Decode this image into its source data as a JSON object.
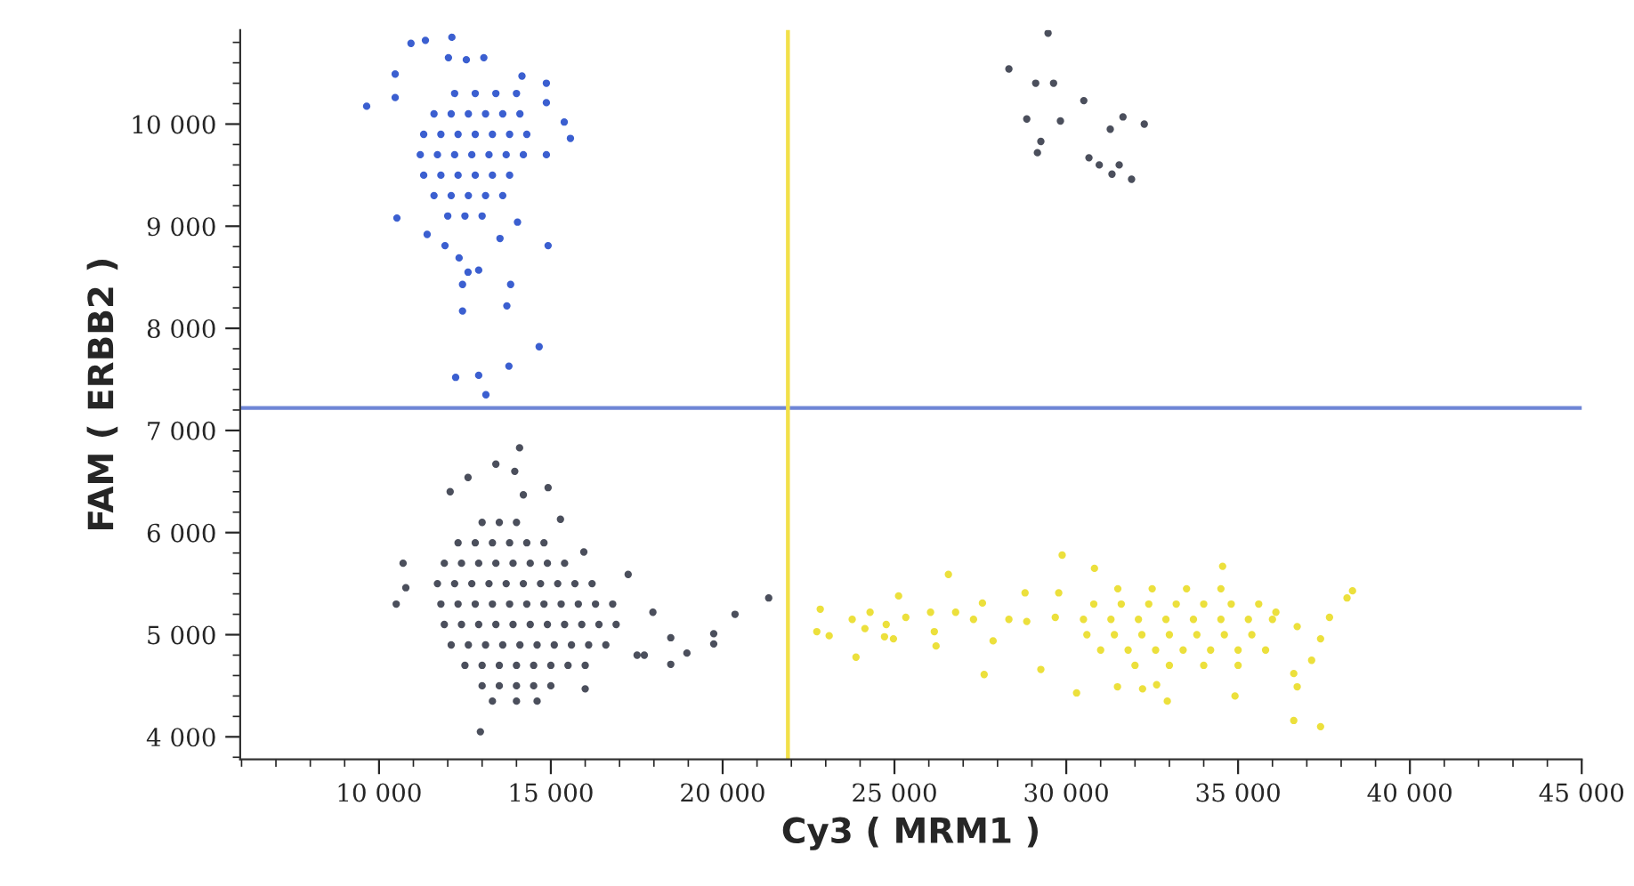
{
  "chart_data": {
    "type": "scatter",
    "xlabel": "Cy3 ( MRM1 )",
    "ylabel": "FAM ( ERBB2 )",
    "xlim": [
      5960,
      45000
    ],
    "ylim": [
      3780,
      10920
    ],
    "xticks": [
      {
        "value": 10000,
        "label": "10 000"
      },
      {
        "value": 15000,
        "label": "15 000"
      },
      {
        "value": 20000,
        "label": "20 000"
      },
      {
        "value": 25000,
        "label": "25 000"
      },
      {
        "value": 30000,
        "label": "30 000"
      },
      {
        "value": 35000,
        "label": "35 000"
      },
      {
        "value": 40000,
        "label": "40 000"
      },
      {
        "value": 45000,
        "label": "45 000"
      }
    ],
    "yticks": [
      {
        "value": 4000,
        "label": "4 000"
      },
      {
        "value": 5000,
        "label": "5 000"
      },
      {
        "value": 6000,
        "label": "6 000"
      },
      {
        "value": 7000,
        "label": "7 000"
      },
      {
        "value": 8000,
        "label": "8 000"
      },
      {
        "value": 9000,
        "label": "9 000"
      },
      {
        "value": 10000,
        "label": "10 000"
      }
    ],
    "marker": "circle",
    "ref_lines": [
      {
        "axis": "y",
        "value": 7220,
        "color": "#6f86d6"
      },
      {
        "axis": "x",
        "value": 21900,
        "color": "#f2e04a"
      }
    ],
    "series": [
      {
        "color": "#4b4f5c",
        "x": [
          13000,
          13500,
          14000,
          12300,
          12800,
          13300,
          13800,
          14300,
          14800,
          11900,
          12400,
          12900,
          13400,
          13900,
          14400,
          14900,
          15400,
          11700,
          12200,
          12700,
          13200,
          13700,
          14200,
          14700,
          15200,
          15700,
          16200,
          11800,
          12300,
          12800,
          13300,
          13800,
          14300,
          14800,
          15300,
          15800,
          16300,
          16800,
          11900,
          12400,
          12900,
          13400,
          13900,
          14400,
          14900,
          15400,
          15900,
          16400,
          16900,
          12100,
          12600,
          13100,
          13600,
          14100,
          14600,
          15100,
          15600,
          16100,
          16600,
          12500,
          13000,
          13500,
          14000,
          14500,
          15000,
          15500,
          16000,
          13000,
          13500,
          14000,
          14500,
          15000,
          13300,
          14000,
          14600,
          10500,
          10700,
          10780,
          12070,
          12590,
          13400,
          13950,
          14090,
          14200,
          14920,
          12950,
          16000,
          17970,
          18490,
          18490,
          18960,
          19740,
          19740,
          20360,
          21340,
          17720,
          17510,
          17250,
          15960,
          15280,
          29470,
          28330,
          29110,
          29630,
          30510,
          28850,
          29830,
          31280,
          31650,
          32270,
          29260,
          29160,
          30660,
          30960,
          31540,
          31330,
          31900
        ],
        "values": [
          6100,
          6100,
          6100,
          5900,
          5900,
          5900,
          5900,
          5900,
          5900,
          5700,
          5700,
          5700,
          5700,
          5700,
          5700,
          5700,
          5700,
          5500,
          5500,
          5500,
          5500,
          5500,
          5500,
          5500,
          5500,
          5500,
          5500,
          5300,
          5300,
          5300,
          5300,
          5300,
          5300,
          5300,
          5300,
          5300,
          5300,
          5300,
          5100,
          5100,
          5100,
          5100,
          5100,
          5100,
          5100,
          5100,
          5100,
          5100,
          5100,
          4900,
          4900,
          4900,
          4900,
          4900,
          4900,
          4900,
          4900,
          4900,
          4900,
          4700,
          4700,
          4700,
          4700,
          4700,
          4700,
          4700,
          4700,
          4500,
          4500,
          4500,
          4500,
          4500,
          4350,
          4350,
          4350,
          5300,
          5700,
          5460,
          6400,
          6540,
          6670,
          6600,
          6830,
          6370,
          6440,
          4050,
          4470,
          5220,
          4970,
          4710,
          4820,
          5010,
          4910,
          5200,
          5360,
          4800,
          4800,
          5590,
          5810,
          6130,
          10890,
          10540,
          10400,
          10400,
          10230,
          10050,
          10030,
          9950,
          10070,
          10000,
          9830,
          9720,
          9670,
          9600,
          9600,
          9510,
          9460
        ]
      },
      {
        "color": "#3b5fd0",
        "x": [
          12200,
          12800,
          13400,
          14000,
          11600,
          12100,
          12600,
          13100,
          13600,
          14100,
          11300,
          11800,
          12300,
          12800,
          13300,
          13800,
          14300,
          11200,
          11700,
          12200,
          12700,
          13200,
          13700,
          14200,
          11300,
          11800,
          12300,
          12800,
          13300,
          13800,
          11600,
          12100,
          12600,
          13100,
          13600,
          12000,
          12500,
          13000,
          9640,
          10470,
          10470,
          10930,
          11350,
          12120,
          12020,
          12540,
          13050,
          10520,
          11400,
          11920,
          12330,
          12590,
          12900,
          12430,
          13830,
          13720,
          12430,
          14920,
          14660,
          13780,
          12900,
          12230,
          13110,
          15570,
          15390,
          14870,
          14160,
          14870,
          14870,
          14030,
          13520
        ],
        "values": [
          10300,
          10300,
          10300,
          10300,
          10100,
          10100,
          10100,
          10100,
          10100,
          10100,
          9900,
          9900,
          9900,
          9900,
          9900,
          9900,
          9900,
          9700,
          9700,
          9700,
          9700,
          9700,
          9700,
          9700,
          9500,
          9500,
          9500,
          9500,
          9500,
          9500,
          9300,
          9300,
          9300,
          9300,
          9300,
          9100,
          9100,
          9100,
          10175,
          10490,
          10260,
          10790,
          10820,
          10850,
          10650,
          10630,
          10650,
          9080,
          8920,
          8810,
          8690,
          8550,
          8570,
          8430,
          8430,
          8220,
          8170,
          8810,
          7820,
          7630,
          7540,
          7520,
          7350,
          9860,
          10020,
          10400,
          10470,
          10210,
          9700,
          9040,
          8880
        ]
      },
      {
        "color": "#ece03c",
        "x": [
          31500,
          32500,
          33500,
          34500,
          30800,
          31600,
          32400,
          33200,
          34000,
          34800,
          35600,
          30500,
          31300,
          32100,
          32900,
          33700,
          34500,
          35300,
          36000,
          30600,
          31400,
          32200,
          33000,
          33800,
          34600,
          35400,
          31000,
          31800,
          32600,
          33400,
          34200,
          35000,
          35800,
          32000,
          33000,
          34000,
          35000,
          22740,
          22840,
          23100,
          23880,
          23770,
          24290,
          24140,
          24760,
          24710,
          24970,
          25120,
          25330,
          26050,
          26160,
          26210,
          26570,
          26780,
          27300,
          27560,
          27870,
          27610,
          28330,
          28800,
          28850,
          29260,
          29680,
          29880,
          29780,
          30300,
          30820,
          31490,
          32220,
          32630,
          32940,
          34550,
          34910,
          36620,
          36720,
          36620,
          37400,
          37140,
          37400,
          37660,
          38170,
          38330,
          36720,
          36100
        ],
        "values": [
          5450,
          5450,
          5450,
          5450,
          5300,
          5300,
          5300,
          5300,
          5300,
          5300,
          5300,
          5150,
          5150,
          5150,
          5150,
          5150,
          5150,
          5150,
          5150,
          5000,
          5000,
          5000,
          5000,
          5000,
          5000,
          5000,
          4850,
          4850,
          4850,
          4850,
          4850,
          4850,
          4850,
          4700,
          4700,
          4700,
          4700,
          5030,
          5250,
          4990,
          4780,
          5150,
          5220,
          5060,
          5100,
          4980,
          4960,
          5380,
          5170,
          5220,
          5030,
          4890,
          5590,
          5220,
          5150,
          5310,
          4940,
          4610,
          5150,
          5410,
          5130,
          4660,
          5170,
          5780,
          5410,
          4430,
          5650,
          4490,
          4470,
          4510,
          4350,
          5670,
          4400,
          4620,
          4490,
          4160,
          4100,
          4750,
          4960,
          5170,
          5360,
          5430,
          5080,
          5220
        ]
      }
    ]
  }
}
